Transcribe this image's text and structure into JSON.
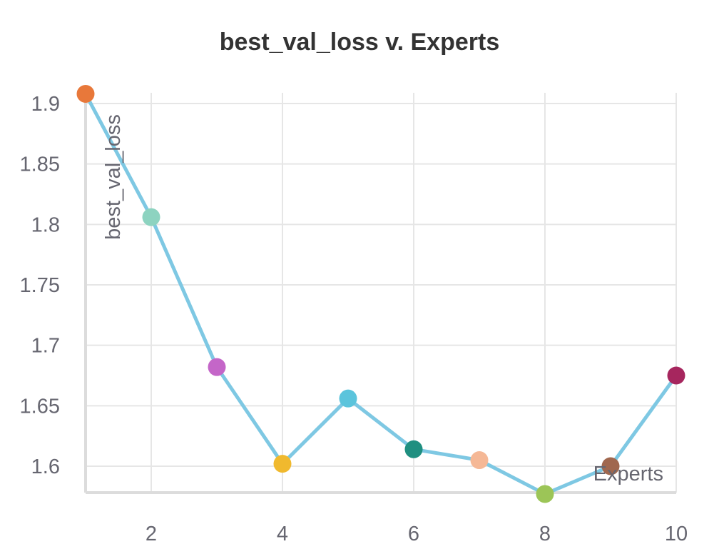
{
  "chart_data": {
    "type": "line",
    "title": "best_val_loss v. Experts",
    "xlabel": "Experts",
    "ylabel": "best_val_loss",
    "xlim": [
      1,
      10
    ],
    "ylim": [
      1.58,
      1.9
    ],
    "x_ticks": [
      2,
      4,
      6,
      8,
      10
    ],
    "y_ticks": [
      1.6,
      1.65,
      1.7,
      1.75,
      1.8,
      1.85,
      1.9
    ],
    "y_tick_labels": [
      "1.6",
      "1.65",
      "1.7",
      "1.75",
      "1.8",
      "1.85",
      "1.9"
    ],
    "grid": true,
    "legend": "none",
    "series": [
      {
        "line_color": "#7ec8e3",
        "x": [
          1,
          2,
          3,
          4,
          5,
          6,
          7,
          8,
          9,
          10
        ],
        "y": [
          1.908,
          1.806,
          1.682,
          1.602,
          1.656,
          1.614,
          1.605,
          1.577,
          1.6,
          1.675
        ],
        "point_colors": [
          "#e8783a",
          "#8dd3c0",
          "#c466c8",
          "#f0b92e",
          "#5bc4dc",
          "#1f8f80",
          "#f5b896",
          "#9cc557",
          "#a0674e",
          "#a6265e"
        ]
      }
    ]
  }
}
